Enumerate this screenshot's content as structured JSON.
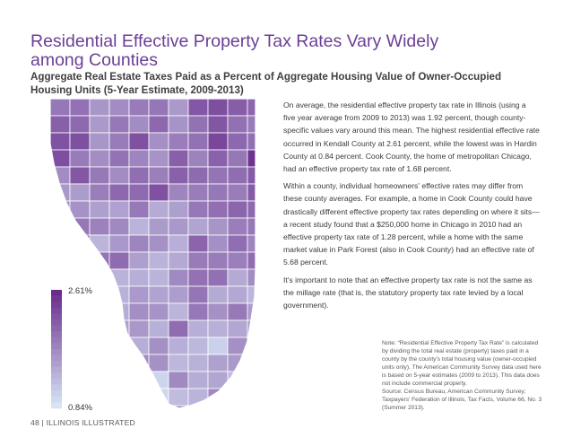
{
  "title": "Residential Effective Property Tax Rates Vary Widely among Counties",
  "subtitle": "Aggregate Real Estate Taxes Paid as a Percent of Aggregate Housing Value of Owner-Occupied Housing Units (5-Year Estimate, 2009-2013)",
  "paragraphs": [
    "On average, the residential effective property tax rate in Illinois (using a five year average from 2009 to 2013) was 1.92 percent, though county-specific values vary around this mean. The highest residential effective rate occurred in Kendall County at 2.61 percent, while the lowest was in Hardin County at 0.84 percent. Cook County, the home of metropolitan Chicago, had an effective property tax rate of 1.68 percent.",
    "Within a county, individual homeowners' effective rates may differ from these county averages. For example, a home in Cook County could have drastically different effective property tax rates depending on where it sits—a recent study found that a $250,000 home in Chicago in 2010 had an effective property tax rate of 1.28 percent, while a home with the same market value in Park Forest (also in Cook County) had an effective rate of 5.68 percent.",
    "It's important to note that an effective property tax rate is not the same as the millage rate (that is, the statutory property tax rate levied by a local government)."
  ],
  "note": {
    "lines": [
      "Note: “Residential Effective Property Tax Rate” is calculated by dividing the total real estate (property) taxes paid in a county by the county's total housing value (owner-occupied units only). The American Community Survey data used here is based on 5-year estimates (2009 to 2013). This data does not include commercial property.",
      "Source: Census Bureau, American Community Survey; Taxpayers' Federation of Illinois, Tax Facts, Volume 66, No. 3 (Summer 2013)."
    ]
  },
  "legend": {
    "max_label": "2.61%",
    "min_label": "0.84%",
    "max_value": 2.61,
    "min_value": 0.84,
    "color_high": "#6a2c8c",
    "color_low": "#d6e4f5",
    "steps": 20
  },
  "footer": "48 | ILLINOIS ILLUSTRATED",
  "colors": {
    "title": "#6a3f95",
    "county_border": "#ffffff"
  },
  "map": {
    "region": "Illinois counties",
    "counties": [
      {
        "name": "Kendall",
        "rate": 2.61
      },
      {
        "name": "Cook",
        "rate": 1.68
      },
      {
        "name": "Hardin",
        "rate": 0.84
      }
    ]
  }
}
